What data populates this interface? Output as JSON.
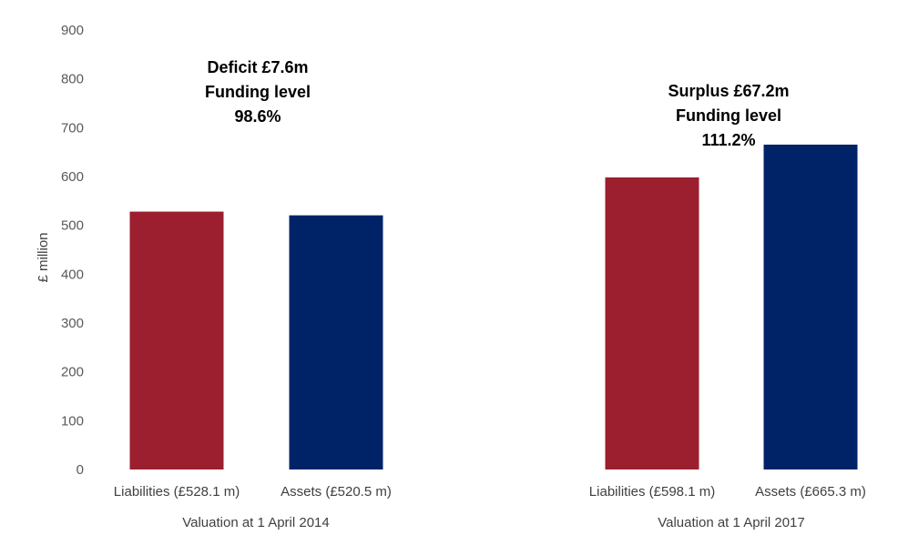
{
  "chart_data": {
    "type": "bar",
    "ylabel": "£ million",
    "ylim": [
      0,
      900
    ],
    "yticks": [
      0,
      100,
      200,
      300,
      400,
      500,
      600,
      700,
      800,
      900
    ],
    "grid": false,
    "legend": "none",
    "colors": {
      "liabilities": "#9b1f2e",
      "assets": "#002368",
      "tick_text": "#595959",
      "axis_text": "#404040",
      "annotation_text": "#000000"
    },
    "groups": [
      {
        "label": "Valuation at 1 April 2014",
        "bars": [
          {
            "label": "Liabilities (£528.1 m)",
            "value": 528.1,
            "kind": "liabilities"
          },
          {
            "label": "Assets (£520.5 m)",
            "value": 520.5,
            "kind": "assets"
          }
        ],
        "annotation": [
          "Deficit £7.6m",
          "Funding level",
          "98.6%"
        ]
      },
      {
        "label": "Valuation at 1 April 2017",
        "bars": [
          {
            "label": "Liabilities (£598.1 m)",
            "value": 598.1,
            "kind": "liabilities"
          },
          {
            "label": "Assets (£665.3 m)",
            "value": 665.3,
            "kind": "assets"
          }
        ],
        "annotation": [
          "Surplus £67.2m",
          "Funding level",
          "111.2%"
        ]
      }
    ]
  }
}
